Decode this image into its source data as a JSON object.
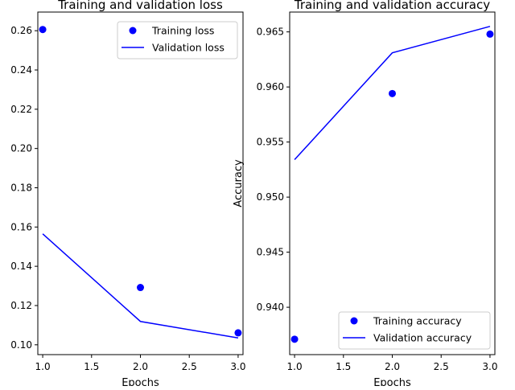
{
  "chart_data": [
    {
      "type": "line",
      "title": "Training and validation loss",
      "xlabel": "Epochs",
      "ylabel": "",
      "xlim": [
        0.95,
        3.05
      ],
      "ylim": [
        0.095,
        0.2695
      ],
      "xticks": [
        1.0,
        1.5,
        2.0,
        2.5,
        3.0
      ],
      "xtick_labels": [
        "1.0",
        "1.5",
        "2.0",
        "2.5",
        "3.0"
      ],
      "yticks": [
        0.1,
        0.12,
        0.14,
        0.16,
        0.18,
        0.2,
        0.22,
        0.24,
        0.26
      ],
      "ytick_labels": [
        "0.10",
        "0.12",
        "0.14",
        "0.16",
        "0.18",
        "0.20",
        "0.22",
        "0.24",
        "0.26"
      ],
      "grid": false,
      "legend": "top-right",
      "series": [
        {
          "name": "Training loss",
          "style": "points",
          "color": "#0000ff",
          "x": [
            1,
            2,
            3
          ],
          "y": [
            0.2606,
            0.1292,
            0.1061
          ]
        },
        {
          "name": "Validation loss",
          "style": "line",
          "color": "#0000ff",
          "x": [
            1,
            2,
            3
          ],
          "y": [
            0.1565,
            0.1119,
            0.1035
          ]
        }
      ]
    },
    {
      "type": "line",
      "title": "Training and validation accuracy",
      "xlabel": "Epochs",
      "ylabel": "Accuracy",
      "xlim": [
        0.95,
        3.05
      ],
      "ylim": [
        0.9357,
        0.9668
      ],
      "xticks": [
        1.0,
        1.5,
        2.0,
        2.5,
        3.0
      ],
      "xtick_labels": [
        "1.0",
        "1.5",
        "2.0",
        "2.5",
        "3.0"
      ],
      "yticks": [
        0.94,
        0.945,
        0.95,
        0.955,
        0.96,
        0.965
      ],
      "ytick_labels": [
        "0.940",
        "0.945",
        "0.950",
        "0.955",
        "0.960",
        "0.965"
      ],
      "grid": false,
      "legend": "bottom-right",
      "series": [
        {
          "name": "Training accuracy",
          "style": "points",
          "color": "#0000ff",
          "x": [
            1,
            2,
            3
          ],
          "y": [
            0.9371,
            0.9594,
            0.9648
          ]
        },
        {
          "name": "Validation accuracy",
          "style": "line",
          "color": "#0000ff",
          "x": [
            1,
            2,
            3
          ],
          "y": [
            0.9534,
            0.9631,
            0.9655
          ]
        }
      ]
    }
  ]
}
